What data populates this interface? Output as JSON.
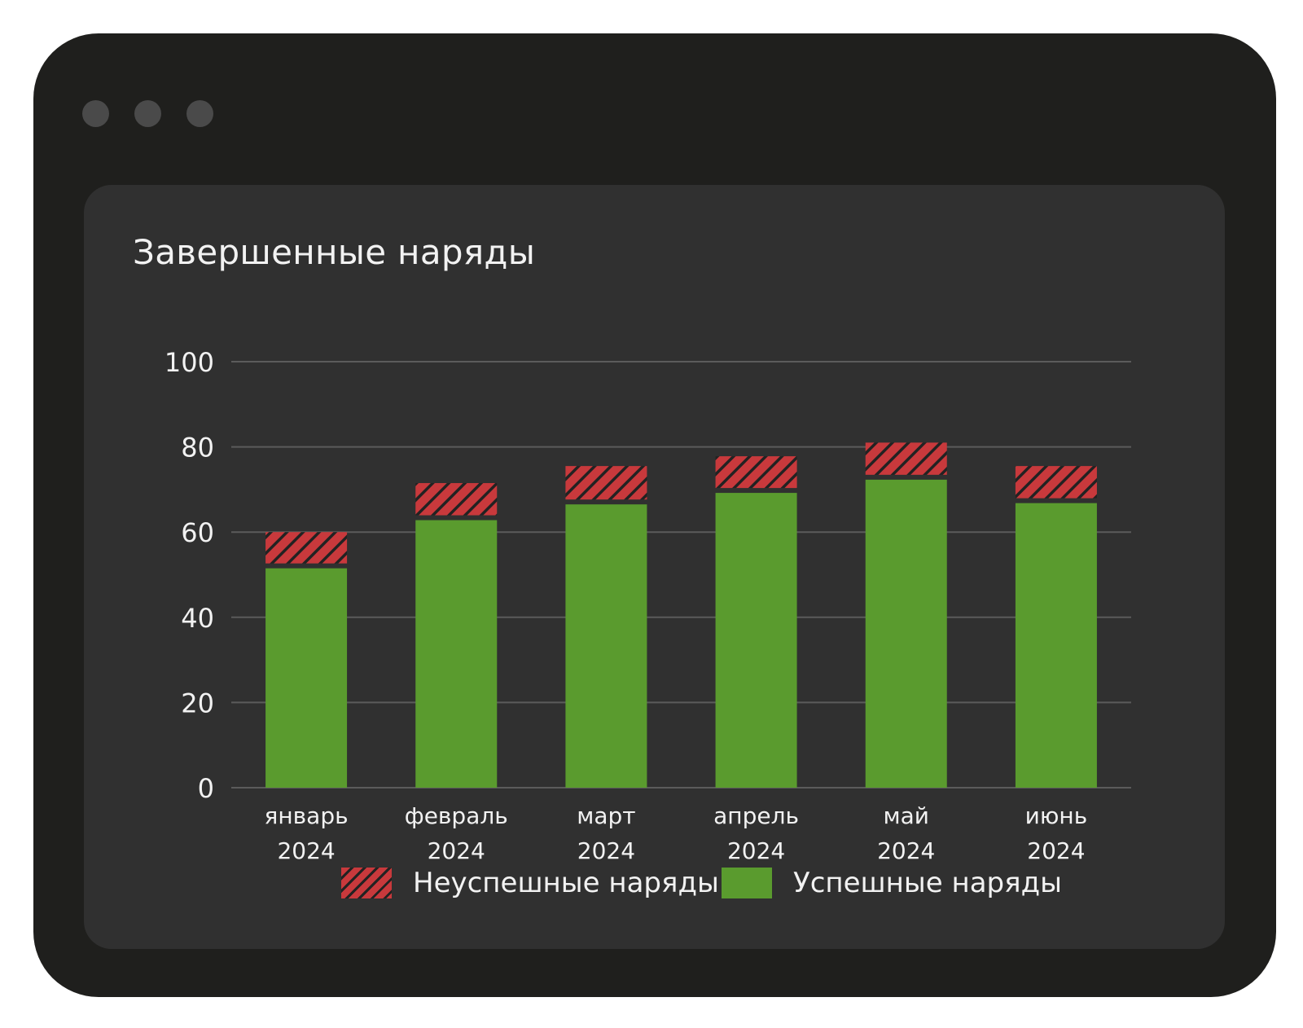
{
  "window": {
    "controls": [
      "window-dot-1",
      "window-dot-2",
      "window-dot-3"
    ]
  },
  "card": {
    "title": "Завершенные наряды"
  },
  "legend": {
    "items": [
      {
        "label": "Неуспешные наряды",
        "style": "hatched",
        "color": "#c8393c"
      },
      {
        "label": "Успешные наряды",
        "style": "solid",
        "color": "#5a9b2e"
      }
    ]
  },
  "chart_data": {
    "type": "bar",
    "stacked": true,
    "title": "Завершенные наряды",
    "xlabel": "",
    "ylabel": "",
    "ylim": [
      0,
      100
    ],
    "yticks": [
      0,
      20,
      40,
      60,
      80,
      100
    ],
    "grid": true,
    "legend_position": "bottom-center",
    "categories": [
      [
        "январь",
        "2024"
      ],
      [
        "февраль",
        "2024"
      ],
      [
        "март",
        "2024"
      ],
      [
        "апрель",
        "2024"
      ],
      [
        "май",
        "2024"
      ],
      [
        "июнь",
        "2024"
      ]
    ],
    "series": [
      {
        "name": "Успешные наряды",
        "color": "#5a9b2e",
        "values": [
          51.5,
          62.8,
          66.5,
          69.2,
          72.3,
          66.8
        ]
      },
      {
        "name": "Неуспешные наряды",
        "color": "#c8393c",
        "pattern": "hatched",
        "values": [
          8.5,
          8.7,
          9.0,
          8.6,
          8.7,
          8.7
        ]
      }
    ],
    "colors": {
      "grid": "#5b5b5b",
      "tick_text": "#f2f2f2",
      "hatch_line": "#222222"
    }
  }
}
